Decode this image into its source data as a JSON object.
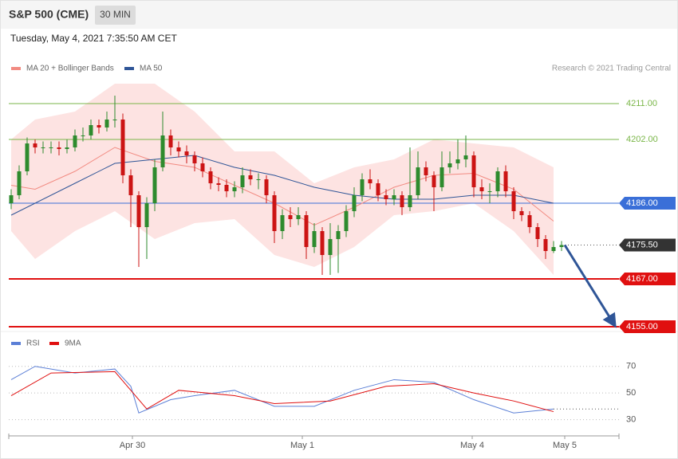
{
  "chart_data": [
    {
      "type": "candlestick",
      "title": "S&P 500 (CME)",
      "timeframe": "30 MIN",
      "timestamp": "Tuesday, May 4, 2021 7:35:50 AM CET",
      "credit": "Research © 2021 Trading Central",
      "ylim": [
        4154,
        4217
      ],
      "up_color": "#2e8b2e",
      "down_color": "#cc1414",
      "open": [
        4186,
        4188,
        4194,
        4201,
        4200,
        4200,
        4200,
        4199.6,
        4200,
        4203,
        4203,
        4205.6,
        4205,
        4207,
        4207,
        4193,
        4188,
        4180,
        4186,
        4195,
        4203,
        4200,
        4199,
        4198,
        4196,
        4194,
        4191,
        4190.6,
        4189,
        4190,
        4193,
        4192,
        4192,
        4188,
        4179,
        4183,
        4182,
        4183,
        4175,
        4179,
        4173,
        4177,
        4179,
        4184,
        4188,
        4192,
        4191,
        4188,
        4187,
        4188,
        4185,
        4188,
        4195,
        4193,
        4190,
        4195,
        4196,
        4197,
        4198,
        4190,
        4189,
        4189,
        4194,
        4189,
        4184,
        4183,
        4180,
        4177,
        4174,
        4175
      ],
      "high": [
        4189.5,
        4195.5,
        4202.5,
        4202,
        4201.5,
        4201.5,
        4201.5,
        4202,
        4204.5,
        4205,
        4207,
        4207,
        4209,
        4213,
        4208.5,
        4194.5,
        4189,
        4187.5,
        4197,
        4209,
        4204.5,
        4201.5,
        4200.5,
        4199,
        4197.5,
        4195,
        4192.5,
        4192,
        4191.5,
        4195,
        4194.5,
        4193.5,
        4193,
        4189,
        4184.5,
        4185,
        4185,
        4184,
        4181,
        4180,
        4181,
        4180.5,
        4185.5,
        4190,
        4193.5,
        4194.5,
        4192,
        4189.5,
        4189.5,
        4189,
        4200,
        4199,
        4196.5,
        4194,
        4199,
        4199,
        4202,
        4203,
        4199,
        4192,
        4191,
        4195,
        4195.5,
        4190,
        4185,
        4184,
        4181,
        4178,
        4176.5,
        4176.5
      ],
      "low": [
        4184.5,
        4187,
        4193,
        4198.5,
        4198.5,
        4198.5,
        4198,
        4198.5,
        4199,
        4201.5,
        4202,
        4203.5,
        4204,
        4205,
        4191,
        4180,
        4170,
        4172,
        4184,
        4194,
        4198,
        4197.5,
        4196,
        4194,
        4192.5,
        4189.5,
        4189,
        4187.5,
        4187.5,
        4188.5,
        4190.5,
        4189.5,
        4186,
        4176,
        4177,
        4180,
        4180.5,
        4172,
        4173.5,
        4168,
        4168,
        4168.5,
        4177.5,
        4182.5,
        4186.5,
        4189.5,
        4186.5,
        4185.5,
        4185.5,
        4183,
        4184,
        4187,
        4191.5,
        4184,
        4189,
        4193.5,
        4194.5,
        4195,
        4187.5,
        4187,
        4186,
        4187.5,
        4187.5,
        4182,
        4181.5,
        4178.5,
        4175,
        4172,
        4173.5,
        4174
      ],
      "close": [
        4188,
        4194,
        4201,
        4200,
        4200,
        4200,
        4199.6,
        4200,
        4203,
        4203,
        4205.6,
        4205,
        4207,
        4207,
        4193,
        4188,
        4180,
        4186,
        4195,
        4203,
        4200,
        4199,
        4198,
        4196,
        4194,
        4191,
        4190.6,
        4189,
        4190,
        4193,
        4192,
        4192,
        4188,
        4179,
        4183,
        4182,
        4183,
        4175,
        4179,
        4173,
        4177,
        4179,
        4184,
        4188,
        4192,
        4191,
        4188,
        4187,
        4188,
        4185,
        4188,
        4195,
        4193,
        4190,
        4195,
        4196,
        4197,
        4198,
        4190,
        4189,
        4189,
        4194,
        4189,
        4184,
        4183,
        4180,
        4177,
        4174,
        4175,
        4175.5
      ],
      "series": [
        {
          "name": "MA 20 + Bollinger Bands",
          "color": "#f28b82",
          "band_color": "#fde3e2",
          "x": [
            0,
            3,
            8,
            13,
            18,
            23,
            28,
            33,
            38,
            43,
            48,
            53,
            58,
            63,
            68
          ],
          "values": [
            4190.5,
            4189.5,
            4194,
            4200,
            4196.5,
            4195,
            4190.5,
            4186,
            4180.5,
            4185,
            4190,
            4193,
            4193.5,
            4189.5,
            4181.5
          ],
          "upper": [
            4202,
            4207,
            4209,
            4216,
            4216,
            4209,
            4199,
            4199,
            4191,
            4195,
            4197,
            4202,
            4201,
            4200,
            4195
          ],
          "lower": [
            4179,
            4172,
            4179,
            4184,
            4177,
            4181,
            4182,
            4173,
            4170,
            4175,
            4183,
            4184,
            4186,
            4179,
            4168
          ]
        },
        {
          "name": "MA 50",
          "color": "#2f5597",
          "x": [
            0,
            3,
            8,
            13,
            18,
            23,
            28,
            33,
            38,
            43,
            48,
            53,
            58,
            63,
            68
          ],
          "values": [
            4183,
            4186,
            4191,
            4196,
            4197,
            4198,
            4195,
            4193,
            4190,
            4188,
            4187,
            4187,
            4188,
            4188,
            4186
          ]
        }
      ],
      "levels": [
        {
          "value": 4211,
          "label": "4211.00",
          "color": "#7ab648",
          "line": "thin",
          "tag": false
        },
        {
          "value": 4202,
          "label": "4202.00",
          "color": "#7ab648",
          "line": "thin",
          "tag": false
        },
        {
          "value": 4186,
          "label": "4186.00",
          "color": "#3a6fd8",
          "line": "thin",
          "tag": true
        },
        {
          "value": 4175.5,
          "label": "4175.50",
          "color": "#333333",
          "line": "dotted",
          "tag": true
        },
        {
          "value": 4167,
          "label": "4167.00",
          "color": "#e01010",
          "line": "thick",
          "tag": true
        },
        {
          "value": 4155,
          "label": "4155.00",
          "color": "#e01010",
          "line": "thick",
          "tag": true
        }
      ]
    },
    {
      "type": "line",
      "ylim": [
        19,
        80
      ],
      "yticks": [
        30,
        50,
        70
      ],
      "xlim": [
        -0.3,
        76.2
      ],
      "xticks": [
        {
          "value": 15.2,
          "label": "Apr 30"
        },
        {
          "value": 36.5,
          "label": "May 1"
        },
        {
          "value": 57.8,
          "label": "May 4"
        },
        {
          "value": 69.4,
          "label": "May 5"
        }
      ],
      "series": [
        {
          "name": "RSI",
          "color": "#5b7fd6",
          "x": [
            0,
            3,
            8,
            13,
            15,
            16,
            18,
            20,
            23,
            28,
            33,
            38,
            43,
            48,
            53,
            58,
            63,
            68
          ],
          "values": [
            60,
            70,
            65,
            68,
            55,
            35,
            40,
            45,
            48,
            52,
            40,
            40,
            52,
            60,
            58,
            45,
            35,
            38
          ]
        },
        {
          "name": "9MA",
          "color": "#e01010",
          "x": [
            0,
            5,
            13,
            17,
            21,
            28,
            33,
            40,
            47,
            53,
            58,
            63,
            68
          ],
          "values": [
            48,
            65,
            66,
            38,
            52,
            48,
            42,
            44,
            55,
            57,
            50,
            44,
            36
          ]
        }
      ]
    }
  ]
}
